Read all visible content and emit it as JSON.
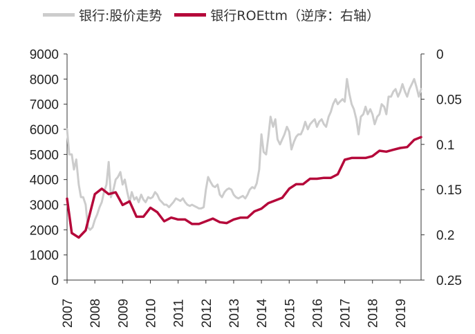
{
  "chart_data": {
    "type": "line",
    "legend": {
      "placement": "top",
      "entries": [
        {
          "key": "price",
          "label": "银行:股价走势",
          "color": "#cccccc"
        },
        {
          "key": "roe",
          "label": "银行ROEttm（逆序：右轴）",
          "color": "#b5083a"
        }
      ]
    },
    "x_tick_labels": [
      "2007",
      "2008",
      "2009",
      "2010",
      "2011",
      "2012",
      "2013",
      "2014",
      "2015",
      "2016",
      "2017",
      "2018",
      "2019"
    ],
    "x_range": [
      2007,
      2019.75
    ],
    "left_axis": {
      "range": [
        0,
        9000
      ],
      "ticks": [
        "0",
        "1000",
        "2000",
        "3000",
        "4000",
        "5000",
        "6000",
        "7000",
        "8000",
        "9000"
      ]
    },
    "right_axis": {
      "range": [
        0,
        0.25
      ],
      "inverted": true,
      "ticks": [
        "0",
        "0.05",
        "0.1",
        "0.15",
        "0.2",
        "0.25"
      ]
    },
    "grid": false,
    "series": [
      {
        "name": "银行:股价走势",
        "axis": "left",
        "color": "#cccccc",
        "points": [
          [
            2007.0,
            6000
          ],
          [
            2007.08,
            5000
          ],
          [
            2007.17,
            5000
          ],
          [
            2007.25,
            4400
          ],
          [
            2007.33,
            4800
          ],
          [
            2007.42,
            3800
          ],
          [
            2007.5,
            3300
          ],
          [
            2007.58,
            3300
          ],
          [
            2007.67,
            3000
          ],
          [
            2007.75,
            2100
          ],
          [
            2007.83,
            2000
          ],
          [
            2007.92,
            2100
          ],
          [
            2008.0,
            2400
          ],
          [
            2008.08,
            2600
          ],
          [
            2008.17,
            2900
          ],
          [
            2008.25,
            3100
          ],
          [
            2008.33,
            3500
          ],
          [
            2008.42,
            3800
          ],
          [
            2008.5,
            4700
          ],
          [
            2008.58,
            3300
          ],
          [
            2008.67,
            3600
          ],
          [
            2008.75,
            4000
          ],
          [
            2008.83,
            4100
          ],
          [
            2008.92,
            4300
          ],
          [
            2009.0,
            3800
          ],
          [
            2009.08,
            4000
          ],
          [
            2009.17,
            3500
          ],
          [
            2009.25,
            3100
          ],
          [
            2009.33,
            3500
          ],
          [
            2009.42,
            3200
          ],
          [
            2009.5,
            3300
          ],
          [
            2009.58,
            3100
          ],
          [
            2009.67,
            3400
          ],
          [
            2009.75,
            3200
          ],
          [
            2009.83,
            3100
          ],
          [
            2009.92,
            3300
          ],
          [
            2010.0,
            3250
          ],
          [
            2010.08,
            3300
          ],
          [
            2010.17,
            3500
          ],
          [
            2010.25,
            3400
          ],
          [
            2010.33,
            3200
          ],
          [
            2010.42,
            3100
          ],
          [
            2010.5,
            3000
          ],
          [
            2010.58,
            3000
          ],
          [
            2010.67,
            2900
          ],
          [
            2010.75,
            3000
          ],
          [
            2010.83,
            3100
          ],
          [
            2010.92,
            3250
          ],
          [
            2011.0,
            3200
          ],
          [
            2011.08,
            3150
          ],
          [
            2011.17,
            3250
          ],
          [
            2011.25,
            3100
          ],
          [
            2011.33,
            3000
          ],
          [
            2011.42,
            2950
          ],
          [
            2011.5,
            3000
          ],
          [
            2011.58,
            2950
          ],
          [
            2011.67,
            2900
          ],
          [
            2011.75,
            2850
          ],
          [
            2011.83,
            2850
          ],
          [
            2011.92,
            2900
          ],
          [
            2012.0,
            3600
          ],
          [
            2012.08,
            4100
          ],
          [
            2012.17,
            3900
          ],
          [
            2012.25,
            3750
          ],
          [
            2012.33,
            3700
          ],
          [
            2012.42,
            3800
          ],
          [
            2012.5,
            3400
          ],
          [
            2012.58,
            3300
          ],
          [
            2012.67,
            3500
          ],
          [
            2012.75,
            3600
          ],
          [
            2012.83,
            3650
          ],
          [
            2012.92,
            3600
          ],
          [
            2013.0,
            3400
          ],
          [
            2013.08,
            3300
          ],
          [
            2013.17,
            3250
          ],
          [
            2013.25,
            3300
          ],
          [
            2013.33,
            3350
          ],
          [
            2013.42,
            3250
          ],
          [
            2013.5,
            3400
          ],
          [
            2013.58,
            3600
          ],
          [
            2013.67,
            3700
          ],
          [
            2013.75,
            3650
          ],
          [
            2013.83,
            3850
          ],
          [
            2013.92,
            4400
          ],
          [
            2014.0,
            5800
          ],
          [
            2014.08,
            5100
          ],
          [
            2014.17,
            5000
          ],
          [
            2014.25,
            5700
          ],
          [
            2014.33,
            6500
          ],
          [
            2014.42,
            6100
          ],
          [
            2014.5,
            6400
          ],
          [
            2014.58,
            5600
          ],
          [
            2014.67,
            5400
          ],
          [
            2014.75,
            5600
          ],
          [
            2014.83,
            5800
          ],
          [
            2014.92,
            6100
          ],
          [
            2015.0,
            5900
          ],
          [
            2015.08,
            5200
          ],
          [
            2015.17,
            5500
          ],
          [
            2015.25,
            5700
          ],
          [
            2015.33,
            5800
          ],
          [
            2015.42,
            5800
          ],
          [
            2015.5,
            6000
          ],
          [
            2015.58,
            6300
          ],
          [
            2015.67,
            6000
          ],
          [
            2015.75,
            6200
          ],
          [
            2015.83,
            6300
          ],
          [
            2015.92,
            6400
          ],
          [
            2016.0,
            6100
          ],
          [
            2016.08,
            6300
          ],
          [
            2016.17,
            6400
          ],
          [
            2016.25,
            6200
          ],
          [
            2016.33,
            6100
          ],
          [
            2016.42,
            6500
          ],
          [
            2016.5,
            6700
          ],
          [
            2016.58,
            7000
          ],
          [
            2016.67,
            7200
          ],
          [
            2016.75,
            7000
          ],
          [
            2016.83,
            7100
          ],
          [
            2016.92,
            7200
          ],
          [
            2017.0,
            7100
          ],
          [
            2017.08,
            8000
          ],
          [
            2017.17,
            7400
          ],
          [
            2017.25,
            7000
          ],
          [
            2017.33,
            6800
          ],
          [
            2017.42,
            6400
          ],
          [
            2017.5,
            5800
          ],
          [
            2017.58,
            6500
          ],
          [
            2017.67,
            6600
          ],
          [
            2017.75,
            6900
          ],
          [
            2017.83,
            6600
          ],
          [
            2017.92,
            6800
          ],
          [
            2018.0,
            6600
          ],
          [
            2018.08,
            6200
          ],
          [
            2018.17,
            6500
          ],
          [
            2018.25,
            6600
          ],
          [
            2018.33,
            7000
          ],
          [
            2018.42,
            6900
          ],
          [
            2018.5,
            6600
          ],
          [
            2018.58,
            7300
          ],
          [
            2018.67,
            7300
          ],
          [
            2018.75,
            7500
          ],
          [
            2018.83,
            7600
          ],
          [
            2018.92,
            7300
          ],
          [
            2019.0,
            7500
          ],
          [
            2019.08,
            7800
          ],
          [
            2019.17,
            7500
          ],
          [
            2019.25,
            7300
          ],
          [
            2019.33,
            7600
          ],
          [
            2019.42,
            7800
          ],
          [
            2019.5,
            8000
          ],
          [
            2019.58,
            7700
          ],
          [
            2019.67,
            7300
          ],
          [
            2019.75,
            7600
          ]
        ]
      },
      {
        "name": "银行ROEttm（逆序：右轴）",
        "axis": "right",
        "color": "#b5083a",
        "points": [
          [
            2007.0,
            0.16
          ],
          [
            2007.17,
            0.198
          ],
          [
            2007.42,
            0.203
          ],
          [
            2007.67,
            0.195
          ],
          [
            2008.0,
            0.155
          ],
          [
            2008.25,
            0.149
          ],
          [
            2008.5,
            0.155
          ],
          [
            2008.75,
            0.153
          ],
          [
            2009.0,
            0.167
          ],
          [
            2009.25,
            0.163
          ],
          [
            2009.5,
            0.18
          ],
          [
            2009.75,
            0.18
          ],
          [
            2010.0,
            0.17
          ],
          [
            2010.25,
            0.175
          ],
          [
            2010.5,
            0.185
          ],
          [
            2010.75,
            0.181
          ],
          [
            2011.0,
            0.183
          ],
          [
            2011.25,
            0.183
          ],
          [
            2011.5,
            0.188
          ],
          [
            2011.75,
            0.188
          ],
          [
            2012.0,
            0.185
          ],
          [
            2012.25,
            0.182
          ],
          [
            2012.5,
            0.186
          ],
          [
            2012.75,
            0.187
          ],
          [
            2013.0,
            0.183
          ],
          [
            2013.25,
            0.181
          ],
          [
            2013.5,
            0.181
          ],
          [
            2013.75,
            0.174
          ],
          [
            2014.0,
            0.171
          ],
          [
            2014.25,
            0.165
          ],
          [
            2014.5,
            0.162
          ],
          [
            2014.75,
            0.159
          ],
          [
            2015.0,
            0.149
          ],
          [
            2015.25,
            0.144
          ],
          [
            2015.5,
            0.144
          ],
          [
            2015.75,
            0.138
          ],
          [
            2016.0,
            0.138
          ],
          [
            2016.25,
            0.137
          ],
          [
            2016.5,
            0.137
          ],
          [
            2016.75,
            0.133
          ],
          [
            2017.0,
            0.117
          ],
          [
            2017.25,
            0.115
          ],
          [
            2017.5,
            0.115
          ],
          [
            2017.75,
            0.115
          ],
          [
            2018.0,
            0.113
          ],
          [
            2018.25,
            0.107
          ],
          [
            2018.5,
            0.108
          ],
          [
            2018.75,
            0.106
          ],
          [
            2019.0,
            0.104
          ],
          [
            2019.25,
            0.103
          ],
          [
            2019.5,
            0.095
          ],
          [
            2019.75,
            0.092
          ]
        ]
      }
    ]
  }
}
